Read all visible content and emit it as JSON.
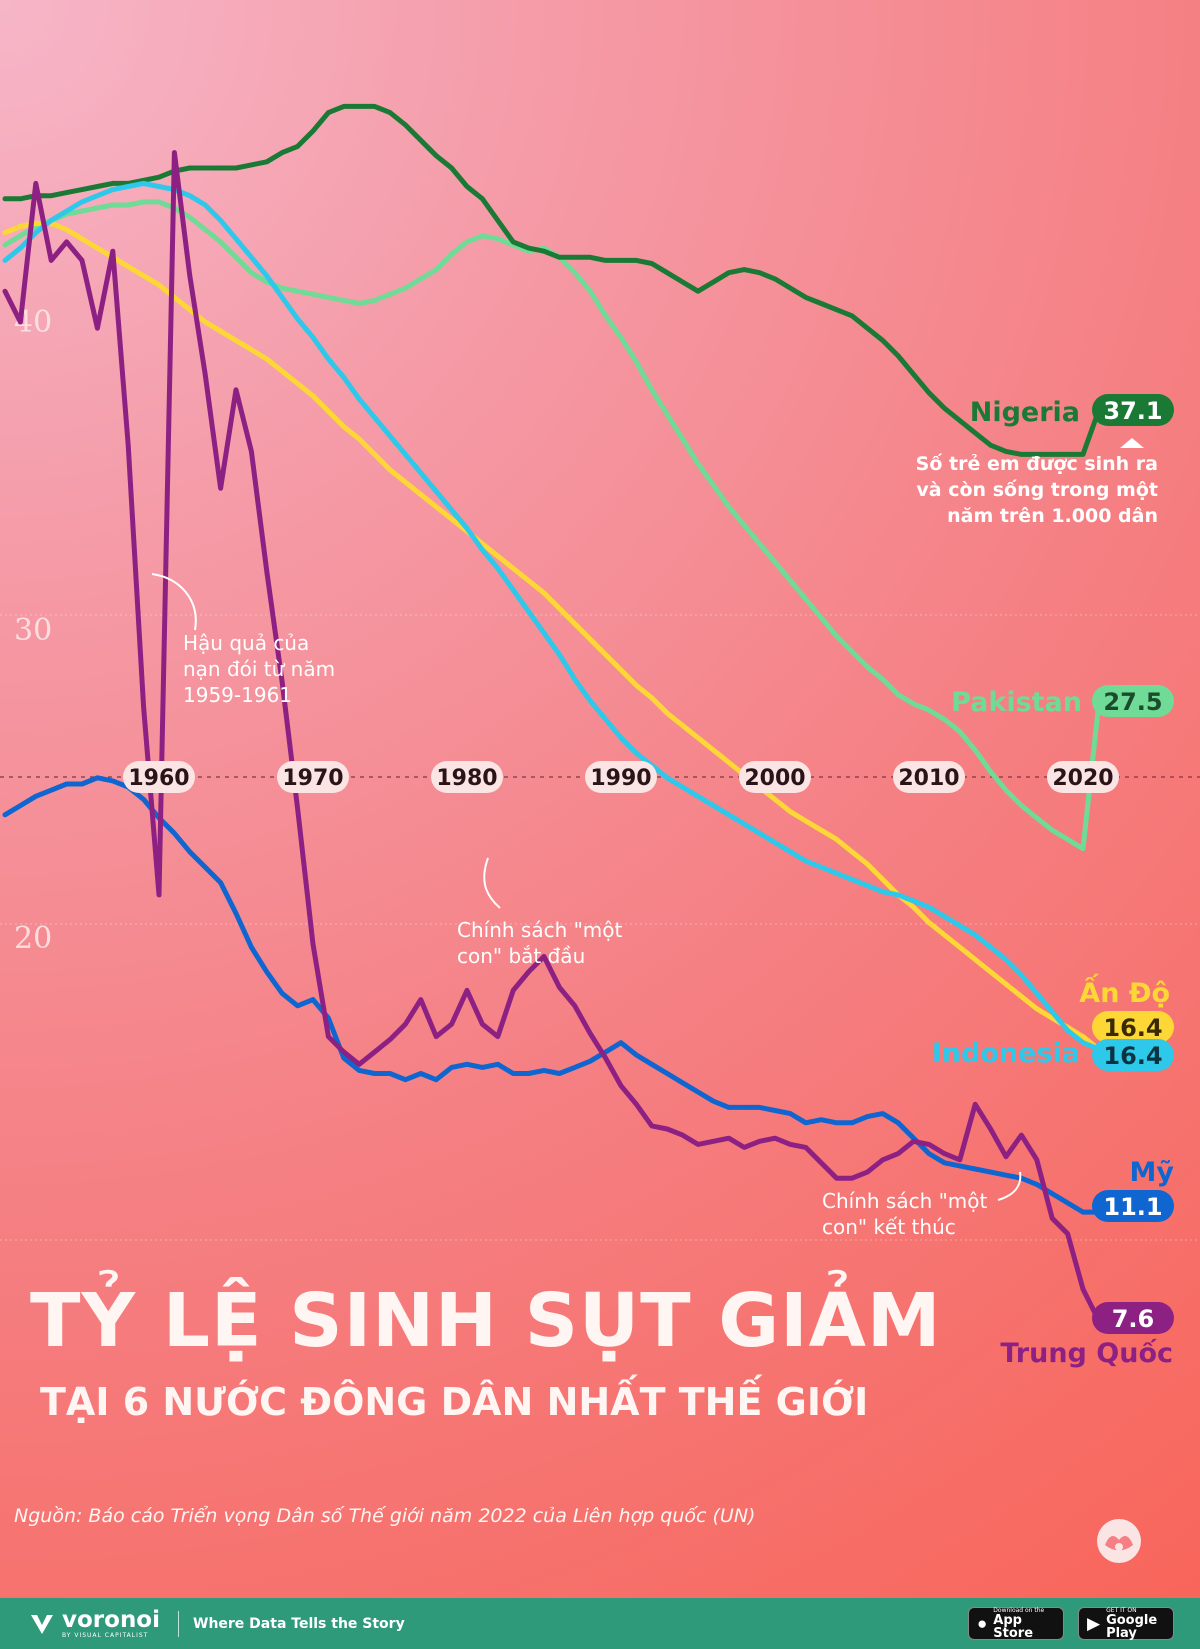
{
  "title": "TỶ LỆ SINH SỤT GIẢM",
  "subtitle": "TẠI 6 NƯỚC ĐÔNG DÂN NHẤT THẾ GIỚI",
  "source": "Nguồn: Báo cáo Triển vọng Dân số Thế giới năm 2022 của Liên hợp quốc (UN)",
  "footer": {
    "brand": "voronoi",
    "brand_by": "BY VISUAL CAPITALIST",
    "tagline": "Where Data Tells the Story",
    "appstore_small": "Download on the",
    "appstore_big": "App Store",
    "play_small": "GET IT ON",
    "play_big": "Google Play"
  },
  "colors": {
    "nigeria": "#1a7a35",
    "pakistan": "#6fdb96",
    "india": "#fdd735",
    "indonesia": "#2ec8ea",
    "usa": "#0f66d0",
    "china": "#8d2183"
  },
  "chart_data": {
    "type": "line",
    "title": "TỶ LỆ SINH SỤT GIẢM",
    "ylabel": "Số trẻ em được sinh ra và còn sống trong một năm trên 1.000 dân",
    "xlim": [
      1950,
      2021
    ],
    "ylim": [
      6,
      50
    ],
    "yticks": [
      20,
      30,
      40
    ],
    "xticks": [
      1960,
      1970,
      1980,
      1990,
      2000,
      2010,
      2020
    ],
    "x": [
      1950,
      1951,
      1952,
      1953,
      1954,
      1955,
      1956,
      1957,
      1958,
      1959,
      1960,
      1961,
      1962,
      1963,
      1964,
      1965,
      1966,
      1967,
      1968,
      1969,
      1970,
      1971,
      1972,
      1973,
      1974,
      1975,
      1976,
      1977,
      1978,
      1979,
      1980,
      1981,
      1982,
      1983,
      1984,
      1985,
      1986,
      1987,
      1988,
      1989,
      1990,
      1991,
      1992,
      1993,
      1994,
      1995,
      1996,
      1997,
      1998,
      1999,
      2000,
      2001,
      2002,
      2003,
      2004,
      2005,
      2006,
      2007,
      2008,
      2009,
      2010,
      2011,
      2012,
      2013,
      2014,
      2015,
      2016,
      2017,
      2018,
      2019,
      2020,
      2021
    ],
    "series": [
      {
        "name": "Nigeria",
        "label": "Nigeria",
        "value_label": "37.1",
        "values": [
          44.0,
          44.0,
          44.1,
          44.1,
          44.2,
          44.3,
          44.4,
          44.5,
          44.5,
          44.6,
          44.7,
          44.9,
          45.0,
          45.0,
          45.0,
          45.0,
          45.1,
          45.2,
          45.5,
          45.7,
          46.2,
          46.8,
          47.0,
          47.0,
          47.0,
          46.8,
          46.4,
          45.9,
          45.4,
          45.0,
          44.4,
          44.0,
          43.3,
          42.6,
          42.4,
          42.3,
          42.1,
          42.1,
          42.1,
          42.0,
          42.0,
          42.0,
          41.9,
          41.6,
          41.3,
          41.0,
          41.3,
          41.6,
          41.7,
          41.6,
          41.4,
          41.1,
          40.8,
          40.6,
          40.4,
          40.2,
          39.8,
          39.4,
          38.9,
          38.3,
          37.7,
          37.2,
          36.8,
          36.4,
          36.0,
          35.8,
          35.7,
          35.7,
          35.7,
          35.7,
          35.7,
          37.1
        ]
      },
      {
        "name": "Pakistan",
        "label": "Pakistan",
        "value_label": "27.5",
        "values": [
          42.5,
          42.8,
          43.1,
          43.3,
          43.5,
          43.6,
          43.7,
          43.8,
          43.8,
          43.9,
          43.9,
          43.7,
          43.4,
          43.0,
          42.6,
          42.1,
          41.6,
          41.3,
          41.1,
          41.0,
          40.9,
          40.8,
          40.7,
          40.6,
          40.7,
          40.9,
          41.1,
          41.4,
          41.7,
          42.2,
          42.6,
          42.8,
          42.7,
          42.5,
          42.3,
          42.4,
          42.1,
          41.6,
          41.0,
          40.2,
          39.5,
          38.7,
          37.8,
          37.0,
          36.2,
          35.4,
          34.7,
          34.0,
          33.4,
          32.8,
          32.2,
          31.6,
          31.0,
          30.4,
          29.8,
          29.3,
          28.8,
          28.4,
          27.9,
          27.6,
          27.4,
          27.1,
          26.7,
          26.1,
          25.4,
          24.8,
          24.3,
          23.9,
          23.5,
          23.2,
          22.9,
          27.5
        ]
      },
      {
        "name": "Ấn Độ",
        "label": "Ấn Độ",
        "value_label": "16.4",
        "values": [
          42.9,
          43.1,
          43.2,
          43.2,
          43.0,
          42.7,
          42.4,
          42.1,
          41.8,
          41.5,
          41.2,
          40.8,
          40.4,
          40.0,
          39.7,
          39.4,
          39.1,
          38.8,
          38.4,
          38.0,
          37.6,
          37.1,
          36.6,
          36.2,
          35.7,
          35.2,
          34.8,
          34.4,
          34.0,
          33.6,
          33.2,
          32.8,
          32.4,
          32.0,
          31.6,
          31.2,
          30.7,
          30.2,
          29.7,
          29.2,
          28.7,
          28.2,
          27.8,
          27.3,
          26.9,
          26.5,
          26.1,
          25.7,
          25.3,
          24.9,
          24.5,
          24.1,
          23.8,
          23.5,
          23.2,
          22.8,
          22.4,
          21.9,
          21.4,
          21.0,
          20.5,
          20.1,
          19.7,
          19.3,
          18.9,
          18.5,
          18.1,
          17.7,
          17.4,
          17.1,
          16.8,
          16.4
        ]
      },
      {
        "name": "Indonesia",
        "label": "Indonesia",
        "value_label": "16.4",
        "values": [
          42.0,
          42.4,
          42.9,
          43.3,
          43.6,
          43.9,
          44.1,
          44.3,
          44.4,
          44.5,
          44.4,
          44.3,
          44.1,
          43.8,
          43.3,
          42.7,
          42.1,
          41.5,
          40.8,
          40.1,
          39.5,
          38.8,
          38.2,
          37.5,
          36.9,
          36.3,
          35.7,
          35.1,
          34.5,
          33.9,
          33.3,
          32.6,
          32.0,
          31.3,
          30.6,
          29.9,
          29.2,
          28.4,
          27.7,
          27.1,
          26.5,
          26.0,
          25.6,
          25.2,
          24.9,
          24.6,
          24.3,
          24.0,
          23.7,
          23.4,
          23.1,
          22.8,
          22.5,
          22.3,
          22.1,
          21.9,
          21.7,
          21.5,
          21.4,
          21.2,
          21.0,
          20.7,
          20.4,
          20.1,
          19.7,
          19.3,
          18.8,
          18.2,
          17.6,
          17.0,
          16.6,
          16.4
        ]
      },
      {
        "name": "Mỹ",
        "label": "Mỹ",
        "value_label": "11.1",
        "values": [
          24.0,
          24.3,
          24.6,
          24.8,
          25.0,
          25.0,
          25.2,
          25.1,
          24.9,
          24.5,
          23.9,
          23.4,
          22.8,
          22.3,
          21.8,
          20.8,
          19.7,
          18.9,
          18.2,
          17.8,
          18.0,
          17.4,
          16.1,
          15.7,
          15.6,
          15.6,
          15.4,
          15.6,
          15.4,
          15.8,
          15.9,
          15.8,
          15.9,
          15.6,
          15.6,
          15.7,
          15.6,
          15.8,
          16.0,
          16.3,
          16.6,
          16.2,
          15.9,
          15.6,
          15.3,
          15.0,
          14.7,
          14.5,
          14.5,
          14.5,
          14.4,
          14.3,
          14.0,
          14.1,
          14.0,
          14.0,
          14.2,
          14.3,
          14.0,
          13.5,
          13.0,
          12.7,
          12.6,
          12.5,
          12.4,
          12.3,
          12.2,
          12.0,
          11.7,
          11.4,
          11.1,
          11.1
        ]
      },
      {
        "name": "Trung Quốc",
        "label": "Trung Quốc",
        "value_label": "7.6",
        "values": [
          41.0,
          40.0,
          44.5,
          42.0,
          42.6,
          42.0,
          39.8,
          42.3,
          36.0,
          27.5,
          21.4,
          45.5,
          41.5,
          38.3,
          34.6,
          37.8,
          35.8,
          31.9,
          28.3,
          24.2,
          19.8,
          16.8,
          16.3,
          15.9,
          16.3,
          16.7,
          17.2,
          18.0,
          16.8,
          17.2,
          18.3,
          17.2,
          16.8,
          18.3,
          18.9,
          19.4,
          18.4,
          17.8,
          16.9,
          16.1,
          15.2,
          14.6,
          13.9,
          13.8,
          13.6,
          13.3,
          13.4,
          13.5,
          13.2,
          13.4,
          13.5,
          13.3,
          13.2,
          12.7,
          12.2,
          12.2,
          12.4,
          12.8,
          13.0,
          13.4,
          13.3,
          13.0,
          12.8,
          14.6,
          13.8,
          12.9,
          13.6,
          12.8,
          10.9,
          10.4,
          8.6,
          7.6
        ]
      }
    ],
    "annotations": [
      {
        "year": 1960,
        "text": [
          "Hậu quả của",
          "nạn đói từ năm",
          "1959-1961"
        ]
      },
      {
        "year": 1979,
        "text": [
          "Chính sách \"một",
          "con\" bắt đầu"
        ]
      },
      {
        "year": 2015,
        "text": [
          "Chính sách \"một",
          "con\" kết thúc"
        ]
      }
    ],
    "unit_note": [
      "Số trẻ em được sinh ra",
      "và còn sống trong một",
      "năm trên 1.000 dân"
    ]
  }
}
